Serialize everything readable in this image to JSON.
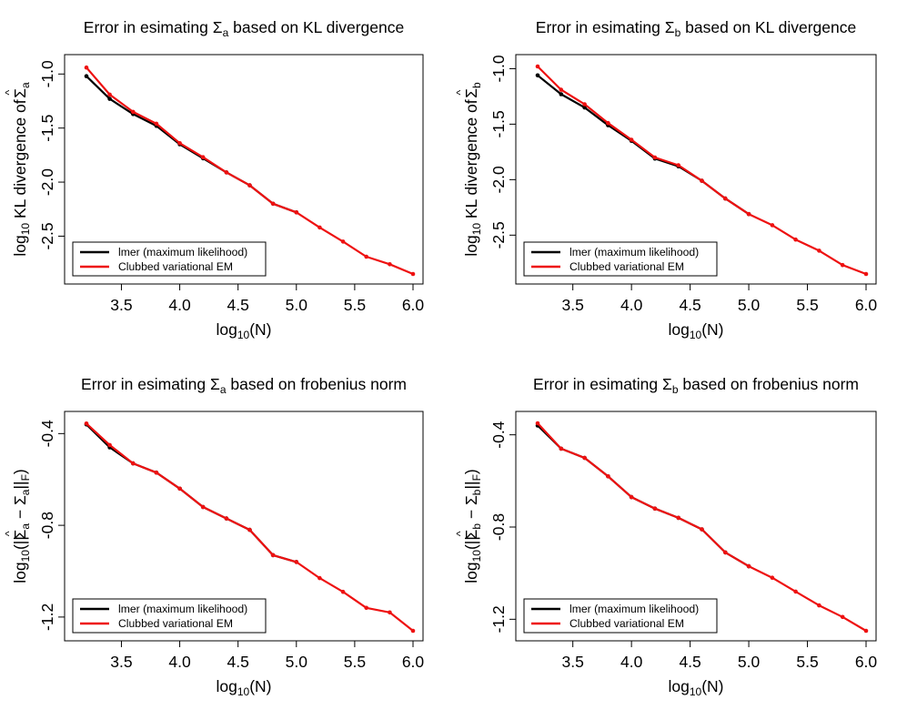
{
  "chart_data": [
    {
      "type": "line",
      "title_prefix": "Error in esimating Σ",
      "title_sub": "a",
      "title_suffix": " based on KL divergence",
      "xlabel_prefix": "log",
      "xlabel_sub": "10",
      "xlabel_suffix": "(N)",
      "ylabel_prefix": "log",
      "ylabel_sub": "10",
      "ylabel_suffix": " KL divergence of ",
      "ylabel_sigma": "Σ",
      "ylabel_hat": "^",
      "ylabel_sigma_sub": "a",
      "xlim": [
        3.2,
        6.0
      ],
      "ylim": [
        -2.85,
        -0.93
      ],
      "xticks": [
        "3.5",
        "4.0",
        "4.5",
        "5.0",
        "5.5",
        "6.0"
      ],
      "yticks": [
        "-1.0",
        "-1.5",
        "-2.0",
        "-2.5"
      ],
      "legend_position": "bottom-left",
      "series": [
        {
          "name": "lmer (maximum likelihood)",
          "color": "#000000",
          "x": [
            3.2,
            3.4,
            3.6,
            3.8,
            4.0,
            4.2,
            4.4,
            4.6,
            4.8,
            5.0
          ],
          "y": [
            -1.02,
            -1.23,
            -1.37,
            -1.48,
            -1.65,
            -1.78,
            -1.91,
            -2.03,
            -2.2,
            -2.28
          ]
        },
        {
          "name": "Clubbed variational EM",
          "color": "#ee1111",
          "x": [
            3.2,
            3.4,
            3.6,
            3.8,
            4.0,
            4.2,
            4.4,
            4.6,
            4.8,
            5.0,
            5.2,
            5.4,
            5.6,
            5.8,
            6.0
          ],
          "y": [
            -0.94,
            -1.19,
            -1.35,
            -1.46,
            -1.64,
            -1.77,
            -1.91,
            -2.03,
            -2.2,
            -2.28,
            -2.42,
            -2.55,
            -2.69,
            -2.76,
            -2.85
          ]
        }
      ]
    },
    {
      "type": "line",
      "title_prefix": "Error in esimating Σ",
      "title_sub": "b",
      "title_suffix": " based on KL divergence",
      "xlabel_prefix": "log",
      "xlabel_sub": "10",
      "xlabel_suffix": "(N)",
      "ylabel_prefix": "log",
      "ylabel_sub": "10",
      "ylabel_suffix": " KL divergence of ",
      "ylabel_sigma": "Σ",
      "ylabel_hat": "^",
      "ylabel_sigma_sub": "b",
      "xlim": [
        3.2,
        6.0
      ],
      "ylim": [
        -2.85,
        -0.98
      ],
      "xticks": [
        "3.5",
        "4.0",
        "4.5",
        "5.0",
        "5.5",
        "6.0"
      ],
      "yticks": [
        "-1.0",
        "-1.5",
        "-2.0",
        "-2.5"
      ],
      "legend_position": "bottom-left",
      "series": [
        {
          "name": "lmer (maximum likelihood)",
          "color": "#000000",
          "x": [
            3.2,
            3.4,
            3.6,
            3.8,
            4.0,
            4.2,
            4.4,
            4.6,
            4.8,
            5.0
          ],
          "y": [
            -1.06,
            -1.23,
            -1.35,
            -1.51,
            -1.65,
            -1.81,
            -1.88,
            -2.01,
            -2.17,
            -2.31
          ]
        },
        {
          "name": "Clubbed variational EM",
          "color": "#ee1111",
          "x": [
            3.2,
            3.4,
            3.6,
            3.8,
            4.0,
            4.2,
            4.4,
            4.6,
            4.8,
            5.0,
            5.2,
            5.4,
            5.6,
            5.8,
            6.0
          ],
          "y": [
            -0.98,
            -1.19,
            -1.32,
            -1.49,
            -1.64,
            -1.8,
            -1.87,
            -2.01,
            -2.17,
            -2.31,
            -2.41,
            -2.54,
            -2.64,
            -2.77,
            -2.85
          ]
        }
      ]
    },
    {
      "type": "line",
      "title_prefix": "Error in esimating Σ",
      "title_sub": "a",
      "title_suffix": " based on frobenius norm",
      "xlabel_prefix": "log",
      "xlabel_sub": "10",
      "xlabel_suffix": "(N)",
      "ylabel_prefix": "log",
      "ylabel_sub": "10",
      "ylabel_suffix": "(||",
      "ylabel_sigma": "Σ",
      "ylabel_hat": "^",
      "ylabel_sigma_sub": "a",
      "ylabel_tail": " − Σ",
      "ylabel_tail_sub": "a",
      "ylabel_norm": "||",
      "ylabel_norm_sub": "F",
      "ylabel_close": ")",
      "xlim": [
        3.2,
        6.0
      ],
      "ylim": [
        -1.26,
        -0.355
      ],
      "xticks": [
        "3.5",
        "4.0",
        "4.5",
        "5.0",
        "5.5",
        "6.0"
      ],
      "yticks": [
        "-0.4",
        "-0.8",
        "-1.2"
      ],
      "legend_position": "bottom-left",
      "series": [
        {
          "name": "lmer (maximum likelihood)",
          "color": "#000000",
          "x": [
            3.2,
            3.4,
            3.6,
            3.8,
            4.0,
            4.2,
            4.4,
            4.6,
            4.8,
            5.0
          ],
          "y": [
            -0.36,
            -0.46,
            -0.53,
            -0.57,
            -0.64,
            -0.72,
            -0.77,
            -0.82,
            -0.93,
            -0.96
          ]
        },
        {
          "name": "Clubbed variational EM",
          "color": "#ee1111",
          "x": [
            3.2,
            3.4,
            3.6,
            3.8,
            4.0,
            4.2,
            4.4,
            4.6,
            4.8,
            5.0,
            5.2,
            5.4,
            5.6,
            5.8,
            6.0
          ],
          "y": [
            -0.356,
            -0.45,
            -0.53,
            -0.57,
            -0.64,
            -0.72,
            -0.77,
            -0.82,
            -0.93,
            -0.96,
            -1.03,
            -1.09,
            -1.16,
            -1.18,
            -1.26
          ]
        }
      ]
    },
    {
      "type": "line",
      "title_prefix": "Error in esimating Σ",
      "title_sub": "b",
      "title_suffix": " based on frobenius norm",
      "xlabel_prefix": "log",
      "xlabel_sub": "10",
      "xlabel_suffix": "(N)",
      "ylabel_prefix": "log",
      "ylabel_sub": "10",
      "ylabel_suffix": "(||",
      "ylabel_sigma": "Σ",
      "ylabel_hat": "^",
      "ylabel_sigma_sub": "b",
      "ylabel_tail": " − Σ",
      "ylabel_tail_sub": "b",
      "ylabel_norm": "||",
      "ylabel_norm_sub": "F",
      "ylabel_close": ")",
      "xlim": [
        3.2,
        6.0
      ],
      "ylim": [
        -1.25,
        -0.35
      ],
      "xticks": [
        "3.5",
        "4.0",
        "4.5",
        "5.0",
        "5.5",
        "6.0"
      ],
      "yticks": [
        "-0.4",
        "-0.8",
        "-1.2"
      ],
      "legend_position": "bottom-left",
      "series": [
        {
          "name": "lmer (maximum likelihood)",
          "color": "#000000",
          "x": [
            3.2,
            3.4,
            3.6,
            3.8,
            4.0,
            4.2,
            4.4,
            4.6,
            4.8,
            5.0
          ],
          "y": [
            -0.36,
            -0.46,
            -0.5,
            -0.58,
            -0.67,
            -0.72,
            -0.76,
            -0.81,
            -0.91,
            -0.97
          ]
        },
        {
          "name": "Clubbed variational EM",
          "color": "#ee1111",
          "x": [
            3.2,
            3.4,
            3.6,
            3.8,
            4.0,
            4.2,
            4.4,
            4.6,
            4.8,
            5.0,
            5.2,
            5.4,
            5.6,
            5.8,
            6.0
          ],
          "y": [
            -0.35,
            -0.46,
            -0.5,
            -0.58,
            -0.67,
            -0.72,
            -0.76,
            -0.81,
            -0.91,
            -0.97,
            -1.02,
            -1.08,
            -1.14,
            -1.19,
            -1.25
          ]
        }
      ]
    }
  ]
}
